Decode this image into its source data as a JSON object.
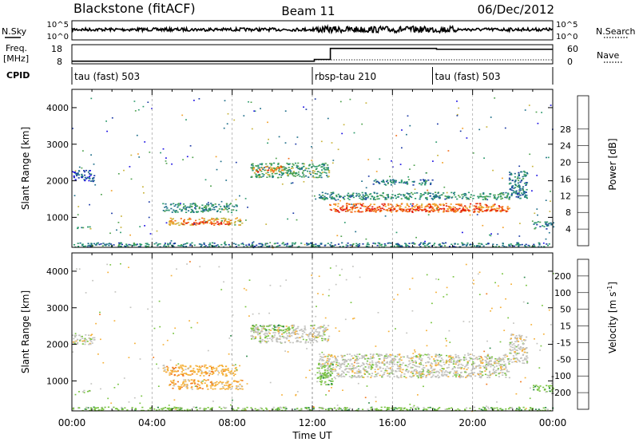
{
  "header": {
    "site": "Blackstone (fitACF)",
    "beam": "Beam 11",
    "date": "06/Dec/2012"
  },
  "top_panel": {
    "nsky_label": "N.Sky",
    "nsky_ticks": [
      "10^5",
      "10^0"
    ],
    "nsearch_ticks": [
      "10^5",
      "10^0"
    ],
    "nsearch_label": "N.Search",
    "freq_label": "Freq.",
    "freq_unit": "[MHz]",
    "freq_ticks": [
      "18",
      "8"
    ],
    "nave_ticks": [
      "60",
      "0"
    ],
    "nave_label": "Nave",
    "cpid_label": "CPID",
    "cpid_segments": [
      {
        "name": "tau (fast) 503",
        "start_h": 0
      },
      {
        "name": "rbsp-tau 210",
        "start_h": 12
      },
      {
        "name": "tau (fast) 503",
        "start_h": 18
      }
    ],
    "freq_steps": [
      {
        "h": 0,
        "mhz": 9.5
      },
      {
        "h": 12.1,
        "mhz": 10.5
      },
      {
        "h": 12.9,
        "mhz": 16.8
      },
      {
        "h": 18.2,
        "mhz": 16.3
      },
      {
        "h": 24,
        "mhz": 16.3
      }
    ]
  },
  "chart_data": [
    {
      "type": "heatmap",
      "title": "Power",
      "ylabel": "Slant Range [km]",
      "xlabel": "",
      "x_range_h": [
        0,
        24
      ],
      "ylim": [
        180,
        4500
      ],
      "yticks": [
        1000,
        2000,
        3000,
        4000
      ],
      "colorbar": {
        "label": "Power [dB]",
        "ticks": [
          "4",
          "8",
          "12",
          "16",
          "20",
          "24",
          "28"
        ],
        "colors": [
          "#1b10e3",
          "#1c3aa6",
          "#1f6f8a",
          "#2d9a6d",
          "#4fa24f",
          "#c8b43c",
          "#f2a12b",
          "#f26a16",
          "#e31d10"
        ]
      },
      "bands": [
        {
          "h0": 0.0,
          "h1": 1.1,
          "r0": 2000,
          "r1": 2300,
          "level": 4
        },
        {
          "h0": 0.2,
          "h1": 1.0,
          "r0": 700,
          "r1": 760,
          "level": 12
        },
        {
          "h0": 0.0,
          "h1": 24,
          "r0": 200,
          "r1": 320,
          "level": 8
        },
        {
          "h0": 4.5,
          "h1": 8.2,
          "r0": 1150,
          "r1": 1400,
          "level": 10
        },
        {
          "h0": 4.8,
          "h1": 8.5,
          "r0": 800,
          "r1": 1000,
          "level": 20
        },
        {
          "h0": 5.5,
          "h1": 8.0,
          "r0": 820,
          "r1": 900,
          "level": 28
        },
        {
          "h0": 8.9,
          "h1": 12.8,
          "r0": 2100,
          "r1": 2500,
          "level": 12
        },
        {
          "h0": 9.0,
          "h1": 10.5,
          "r0": 2250,
          "r1": 2400,
          "level": 24
        },
        {
          "h0": 12.3,
          "h1": 21.8,
          "r0": 1500,
          "r1": 1700,
          "level": 10
        },
        {
          "h0": 12.8,
          "h1": 21.8,
          "r0": 1150,
          "r1": 1400,
          "level": 24
        },
        {
          "h0": 13.0,
          "h1": 21.5,
          "r0": 1180,
          "r1": 1260,
          "level": 28
        },
        {
          "h0": 15.0,
          "h1": 18.0,
          "r0": 1900,
          "r1": 2050,
          "level": 8
        },
        {
          "h0": 21.8,
          "h1": 22.7,
          "r0": 1500,
          "r1": 2300,
          "level": 8
        },
        {
          "h0": 23.0,
          "h1": 24,
          "r0": 700,
          "r1": 900,
          "level": 8
        }
      ]
    },
    {
      "type": "heatmap",
      "title": "Velocity",
      "ylabel": "Slant Range [km]",
      "xlabel": "Time UT",
      "x_range_h": [
        0,
        24
      ],
      "ylim": [
        180,
        4500
      ],
      "yticks": [
        1000,
        2000,
        3000,
        4000
      ],
      "xticks": [
        "00:00",
        "04:00",
        "08:00",
        "12:00",
        "16:00",
        "20:00",
        "00:00"
      ],
      "colorbar": {
        "label": "Velocity [m s",
        "label_sup": "-1",
        "label_end": "]",
        "ticks": [
          "200",
          "100",
          "50",
          "15",
          "-15",
          "-50",
          "-100",
          "-200"
        ],
        "colors": [
          "#1b2fbf",
          "#1f6e8c",
          "#2f8a4d",
          "#79c441",
          "#c3c3bf",
          "#f5b13a",
          "#f2791d",
          "#e8400f",
          "#e31010"
        ]
      },
      "bands": [
        {
          "h0": 0.0,
          "h1": 1.1,
          "r0": 2000,
          "r1": 2300,
          "level": 4
        },
        {
          "h0": 0.2,
          "h1": 1.0,
          "r0": 700,
          "r1": 760,
          "level": 4
        },
        {
          "h0": 0.0,
          "h1": 24,
          "r0": 200,
          "r1": 300,
          "level": 3
        },
        {
          "h0": 4.5,
          "h1": 8.2,
          "r0": 1150,
          "r1": 1450,
          "level": 5
        },
        {
          "h0": 4.8,
          "h1": 8.5,
          "r0": 780,
          "r1": 1050,
          "level": 5
        },
        {
          "h0": 8.9,
          "h1": 12.8,
          "r0": 2050,
          "r1": 2550,
          "level": 4
        },
        {
          "h0": 8.9,
          "h1": 11.0,
          "r0": 2400,
          "r1": 2550,
          "level": 3
        },
        {
          "h0": 12.3,
          "h1": 21.8,
          "r0": 1100,
          "r1": 1750,
          "level": 4
        },
        {
          "h0": 12.2,
          "h1": 13.0,
          "r0": 900,
          "r1": 1500,
          "level": 3
        },
        {
          "h0": 21.8,
          "h1": 22.7,
          "r0": 1500,
          "r1": 2300,
          "level": 4
        },
        {
          "h0": 23.0,
          "h1": 24,
          "r0": 700,
          "r1": 900,
          "level": 3
        }
      ]
    }
  ]
}
